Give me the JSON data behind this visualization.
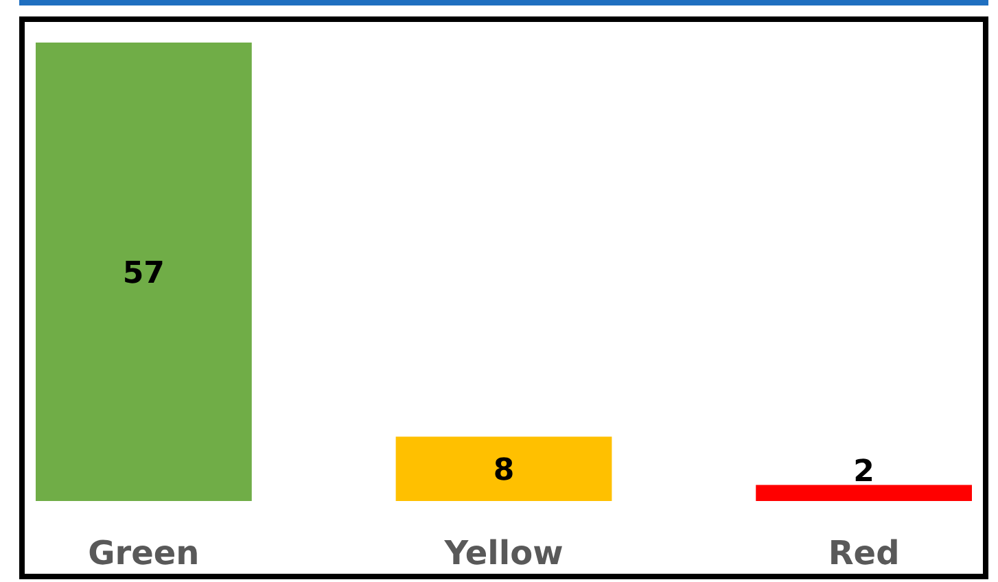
{
  "chart_data": {
    "type": "bar",
    "categories": [
      "Green",
      "Yellow",
      "Red"
    ],
    "values": [
      57,
      8,
      2
    ],
    "colors": [
      "#70ad47",
      "#ffc000",
      "#ff0000"
    ],
    "data_labels": true
  }
}
